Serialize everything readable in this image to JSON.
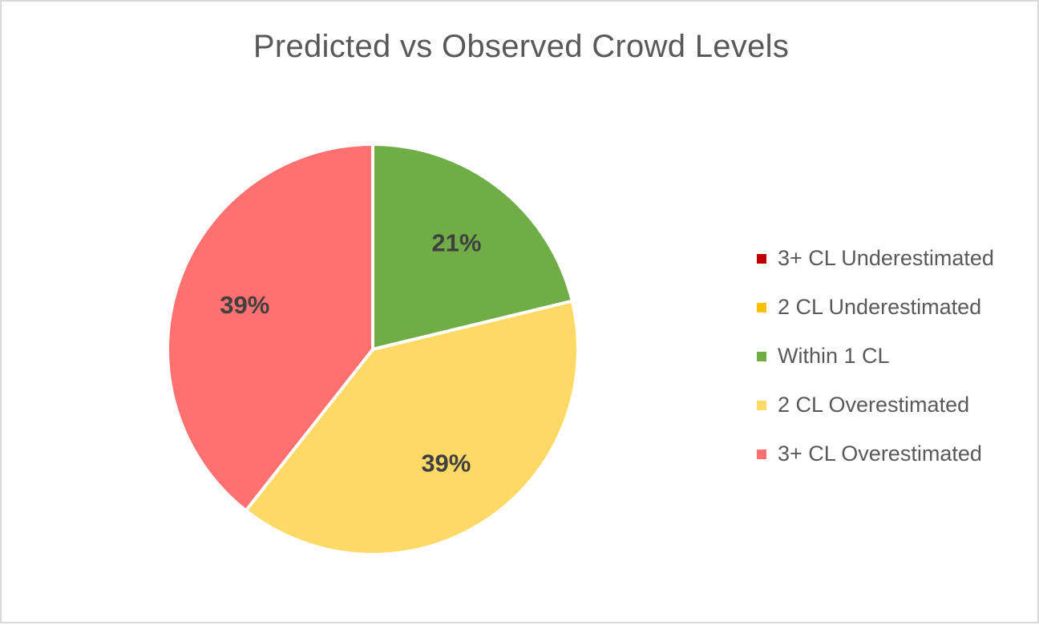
{
  "chart_data": {
    "type": "pie",
    "title": "Predicted vs Observed Crowd Levels",
    "legend_position": "right",
    "slices": [
      {
        "label": "3+ CL Underestimated",
        "value": 0,
        "color": "#c00000",
        "data_label": ""
      },
      {
        "label": "2 CL Underestimated",
        "value": 0,
        "color": "#ffc000",
        "data_label": ""
      },
      {
        "label": "Within 1 CL",
        "value": 21,
        "color": "#70ad47",
        "data_label": "21%"
      },
      {
        "label": "2 CL Overestimated",
        "value": 39,
        "color": "#ffd966",
        "data_label": "39%"
      },
      {
        "label": "3+ CL Overestimated",
        "value": 39,
        "color": "#ff7070",
        "data_label": "39%"
      }
    ]
  }
}
